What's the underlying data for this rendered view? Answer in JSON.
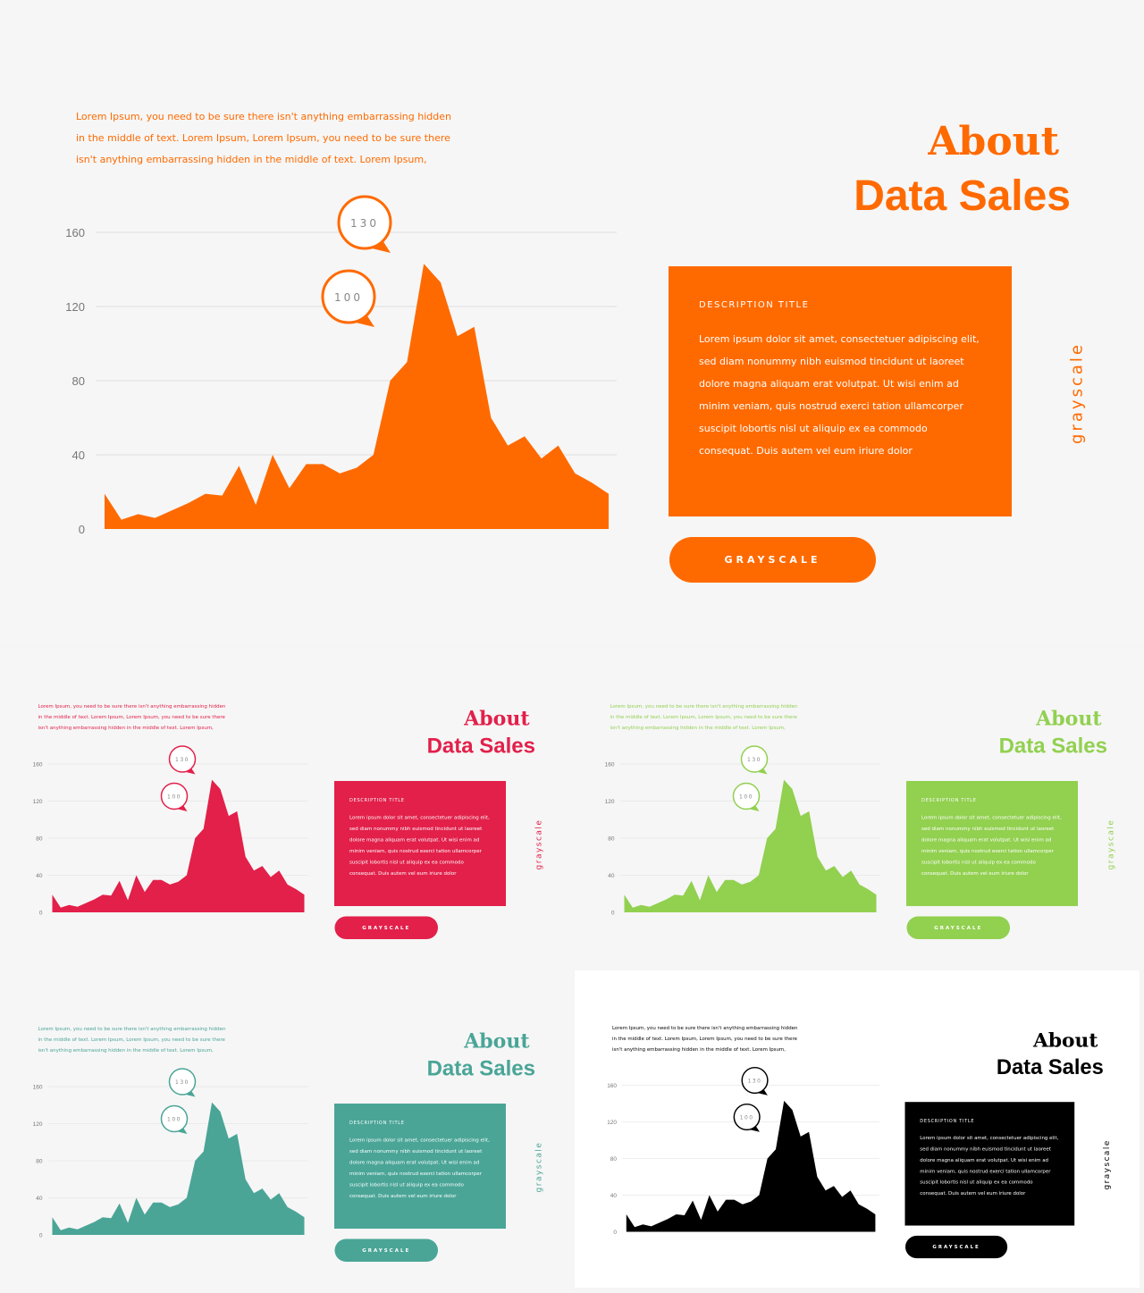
{
  "slides": [
    {
      "id": "main",
      "accent": "#ff6a00"
    },
    {
      "id": "red",
      "accent": "#e2204a"
    },
    {
      "id": "green",
      "accent": "#92d050"
    },
    {
      "id": "teal",
      "accent": "#4aa597"
    },
    {
      "id": "black",
      "accent": "#000000"
    }
  ],
  "content": {
    "intro": "Lorem Ipsum, you need to be sure there isn't anything embarrassing hidden in the middle of text. Lorem Ipsum, Lorem Ipsum, you need to be sure there isn't anything embarrassing hidden in the middle of text. Lorem Ipsum,",
    "about": "About",
    "data_sales": "Data Sales",
    "desc_title": "DESCRIPTION TITLE",
    "desc_text": "Lorem ipsum dolor sit amet, consectetuer adipiscing elit, sed diam nonummy nibh euismod tincidunt ut laoreet dolore magna aliquam erat volutpat. Ut wisi enim ad minim veniam, quis nostrud exerci tation ullamcorper suscipit lobortis nisl ut aliquip ex ea commodo consequat. Duis autem vel eum iriure dolor",
    "vertical_label": "grayscale",
    "button_label": "GRAYSCALE",
    "pins": [
      "130",
      "100"
    ]
  },
  "chart_data": {
    "type": "area",
    "ylim": [
      0,
      160
    ],
    "yticks": [
      "0",
      "40",
      "80",
      "120",
      "160"
    ],
    "grid": true,
    "values": [
      19,
      5,
      8,
      6,
      10,
      14,
      19,
      18,
      34,
      13,
      40,
      22,
      35,
      35,
      30,
      33,
      40,
      80,
      90,
      143,
      133,
      104,
      109,
      60,
      45,
      50,
      38,
      45,
      30,
      25,
      19
    ]
  }
}
